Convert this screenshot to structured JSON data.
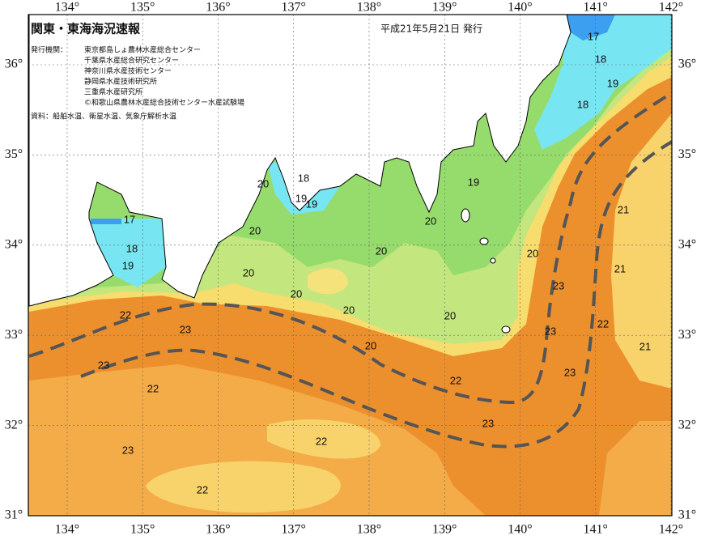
{
  "header": {
    "title": "関東・東海海況速報",
    "date": "平成21年5月21日 発行"
  },
  "publisher": {
    "label": "発行機関：",
    "agencies": [
      "東京都島しょ農林水産総合センター",
      "千葉県水産総合研究センター",
      "神奈川県水産技術センター",
      "静岡県水産技術研究所",
      "三重県水産研究所",
      "©和歌山県農林水産総合技術センター水産試験場"
    ]
  },
  "source": "資料：船舶水温、衛星水温、気象庁解析水温",
  "longitudes": [
    "134°",
    "135°",
    "136°",
    "137°",
    "138°",
    "139°",
    "140°",
    "141°",
    "142°"
  ],
  "latitudes": [
    "36°",
    "35°",
    "34°",
    "33°",
    "32°",
    "31°"
  ],
  "contour_labels": [
    "17",
    "18",
    "19",
    "18",
    "18",
    "19",
    "19",
    "19",
    "20",
    "17",
    "18",
    "19",
    "20",
    "20",
    "20",
    "20",
    "20",
    "20",
    "20",
    "20",
    "20",
    "21",
    "21",
    "21",
    "22",
    "23",
    "23",
    "23",
    "22",
    "23",
    "22",
    "22",
    "23",
    "23",
    "22",
    "23",
    "22"
  ]
}
